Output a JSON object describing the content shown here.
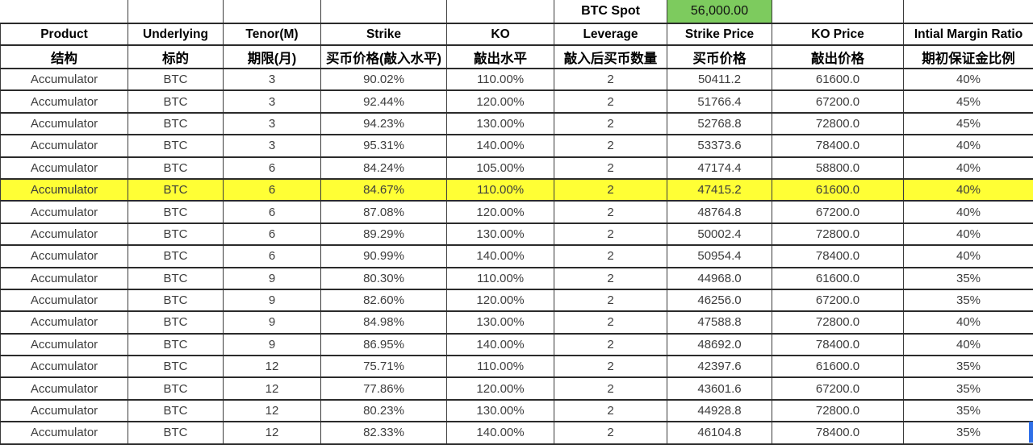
{
  "spot": {
    "label": "BTC Spot",
    "value": "56,000.00"
  },
  "colors": {
    "spot_bg": "#7DCB5E",
    "highlight_bg": "#FFFF35",
    "selection_blue": "#2F6FE8",
    "border": "#2b2b2b"
  },
  "columns": [
    {
      "key": "product",
      "en": "Product",
      "zh": "结构"
    },
    {
      "key": "underlying",
      "en": "Underlying",
      "zh": "标的"
    },
    {
      "key": "tenor",
      "en": "Tenor(M)",
      "zh": "期限(月)"
    },
    {
      "key": "strike",
      "en": "Strike",
      "zh": "买币价格(敲入水平)"
    },
    {
      "key": "ko",
      "en": "KO",
      "zh": "敲出水平"
    },
    {
      "key": "leverage",
      "en": "Leverage",
      "zh": "敲入后买币数量"
    },
    {
      "key": "strike_price",
      "en": "Strike Price",
      "zh": "买币价格"
    },
    {
      "key": "ko_price",
      "en": "KO Price",
      "zh": "敲出价格"
    },
    {
      "key": "margin",
      "en": "Intial Margin Ratio",
      "zh": "期初保证金比例"
    }
  ],
  "rows": [
    {
      "product": "Accumulator",
      "underlying": "BTC",
      "tenor": "3",
      "strike": "90.02%",
      "ko": "110.00%",
      "leverage": "2",
      "strike_price": "50411.2",
      "ko_price": "61600.0",
      "margin": "40%",
      "highlighted": false
    },
    {
      "product": "Accumulator",
      "underlying": "BTC",
      "tenor": "3",
      "strike": "92.44%",
      "ko": "120.00%",
      "leverage": "2",
      "strike_price": "51766.4",
      "ko_price": "67200.0",
      "margin": "45%",
      "highlighted": false
    },
    {
      "product": "Accumulator",
      "underlying": "BTC",
      "tenor": "3",
      "strike": "94.23%",
      "ko": "130.00%",
      "leverage": "2",
      "strike_price": "52768.8",
      "ko_price": "72800.0",
      "margin": "45%",
      "highlighted": false
    },
    {
      "product": "Accumulator",
      "underlying": "BTC",
      "tenor": "3",
      "strike": "95.31%",
      "ko": "140.00%",
      "leverage": "2",
      "strike_price": "53373.6",
      "ko_price": "78400.0",
      "margin": "40%",
      "highlighted": false
    },
    {
      "product": "Accumulator",
      "underlying": "BTC",
      "tenor": "6",
      "strike": "84.24%",
      "ko": "105.00%",
      "leverage": "2",
      "strike_price": "47174.4",
      "ko_price": "58800.0",
      "margin": "40%",
      "highlighted": false
    },
    {
      "product": "Accumulator",
      "underlying": "BTC",
      "tenor": "6",
      "strike": "84.67%",
      "ko": "110.00%",
      "leverage": "2",
      "strike_price": "47415.2",
      "ko_price": "61600.0",
      "margin": "40%",
      "highlighted": true
    },
    {
      "product": "Accumulator",
      "underlying": "BTC",
      "tenor": "6",
      "strike": "87.08%",
      "ko": "120.00%",
      "leverage": "2",
      "strike_price": "48764.8",
      "ko_price": "67200.0",
      "margin": "40%",
      "highlighted": false
    },
    {
      "product": "Accumulator",
      "underlying": "BTC",
      "tenor": "6",
      "strike": "89.29%",
      "ko": "130.00%",
      "leverage": "2",
      "strike_price": "50002.4",
      "ko_price": "72800.0",
      "margin": "40%",
      "highlighted": false
    },
    {
      "product": "Accumulator",
      "underlying": "BTC",
      "tenor": "6",
      "strike": "90.99%",
      "ko": "140.00%",
      "leverage": "2",
      "strike_price": "50954.4",
      "ko_price": "78400.0",
      "margin": "40%",
      "highlighted": false
    },
    {
      "product": "Accumulator",
      "underlying": "BTC",
      "tenor": "9",
      "strike": "80.30%",
      "ko": "110.00%",
      "leverage": "2",
      "strike_price": "44968.0",
      "ko_price": "61600.0",
      "margin": "35%",
      "highlighted": false
    },
    {
      "product": "Accumulator",
      "underlying": "BTC",
      "tenor": "9",
      "strike": "82.60%",
      "ko": "120.00%",
      "leverage": "2",
      "strike_price": "46256.0",
      "ko_price": "67200.0",
      "margin": "35%",
      "highlighted": false
    },
    {
      "product": "Accumulator",
      "underlying": "BTC",
      "tenor": "9",
      "strike": "84.98%",
      "ko": "130.00%",
      "leverage": "2",
      "strike_price": "47588.8",
      "ko_price": "72800.0",
      "margin": "40%",
      "highlighted": false
    },
    {
      "product": "Accumulator",
      "underlying": "BTC",
      "tenor": "9",
      "strike": "86.95%",
      "ko": "140.00%",
      "leverage": "2",
      "strike_price": "48692.0",
      "ko_price": "78400.0",
      "margin": "40%",
      "highlighted": false
    },
    {
      "product": "Accumulator",
      "underlying": "BTC",
      "tenor": "12",
      "strike": "75.71%",
      "ko": "110.00%",
      "leverage": "2",
      "strike_price": "42397.6",
      "ko_price": "61600.0",
      "margin": "35%",
      "highlighted": false
    },
    {
      "product": "Accumulator",
      "underlying": "BTC",
      "tenor": "12",
      "strike": "77.86%",
      "ko": "120.00%",
      "leverage": "2",
      "strike_price": "43601.6",
      "ko_price": "67200.0",
      "margin": "35%",
      "highlighted": false
    },
    {
      "product": "Accumulator",
      "underlying": "BTC",
      "tenor": "12",
      "strike": "80.23%",
      "ko": "130.00%",
      "leverage": "2",
      "strike_price": "44928.8",
      "ko_price": "72800.0",
      "margin": "35%",
      "highlighted": false
    },
    {
      "product": "Accumulator",
      "underlying": "BTC",
      "tenor": "12",
      "strike": "82.33%",
      "ko": "140.00%",
      "leverage": "2",
      "strike_price": "46104.8",
      "ko_price": "78400.0",
      "margin": "35%",
      "highlighted": false
    }
  ]
}
